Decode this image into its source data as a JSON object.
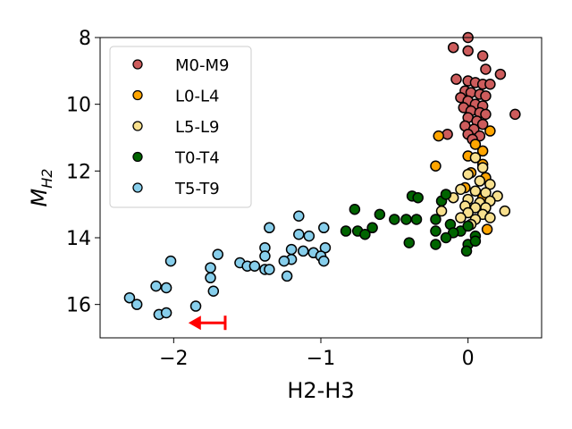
{
  "chart_data": {
    "type": "scatter",
    "title": "",
    "xlabel": "H2-H3",
    "ylabel_base": "M",
    "ylabel_sub": "H2",
    "xlim": [
      -2.5,
      0.5
    ],
    "ylim": [
      17.0,
      8.0
    ],
    "y_inverted": true,
    "xticks": [
      -2,
      -1,
      0
    ],
    "xtick_labels": [
      "−2",
      "−1",
      "0"
    ],
    "yticks": [
      8,
      10,
      12,
      14,
      16
    ],
    "ytick_labels": [
      "8",
      "10",
      "12",
      "14",
      "16"
    ],
    "legend_position": "top-left",
    "series": [
      {
        "name": "M0-M9",
        "color": "#cd5c5c",
        "points": [
          [
            0.0,
            8.0
          ],
          [
            -0.1,
            8.3
          ],
          [
            0.0,
            8.4
          ],
          [
            0.1,
            8.55
          ],
          [
            0.12,
            8.95
          ],
          [
            0.22,
            9.1
          ],
          [
            -0.08,
            9.25
          ],
          [
            0.0,
            9.3
          ],
          [
            0.05,
            9.35
          ],
          [
            0.1,
            9.4
          ],
          [
            0.15,
            9.4
          ],
          [
            -0.02,
            9.6
          ],
          [
            0.02,
            9.65
          ],
          [
            0.08,
            9.7
          ],
          [
            0.12,
            9.75
          ],
          [
            -0.05,
            9.8
          ],
          [
            0.0,
            9.9
          ],
          [
            0.05,
            10.0
          ],
          [
            0.1,
            10.05
          ],
          [
            -0.03,
            10.1
          ],
          [
            0.02,
            10.2
          ],
          [
            0.08,
            10.25
          ],
          [
            0.12,
            10.3
          ],
          [
            0.32,
            10.3
          ],
          [
            0.0,
            10.4
          ],
          [
            0.06,
            10.5
          ],
          [
            0.1,
            10.6
          ],
          [
            -0.02,
            10.65
          ],
          [
            0.04,
            10.75
          ],
          [
            -0.14,
            10.9
          ],
          [
            0.0,
            10.9
          ],
          [
            0.08,
            10.95
          ],
          [
            0.03,
            11.05
          ]
        ]
      },
      {
        "name": "L0-L4",
        "color": "#ffa500",
        "points": [
          [
            -0.2,
            10.95
          ],
          [
            0.15,
            10.8
          ],
          [
            0.05,
            11.2
          ],
          [
            0.1,
            11.4
          ],
          [
            0.0,
            11.55
          ],
          [
            -0.22,
            11.85
          ],
          [
            0.1,
            11.8
          ],
          [
            0.02,
            12.05
          ],
          [
            0.12,
            12.2
          ],
          [
            -0.02,
            12.5
          ],
          [
            0.1,
            12.8
          ],
          [
            0.13,
            13.75
          ]
        ]
      },
      {
        "name": "L5-L9",
        "color": "#f8e08e",
        "points": [
          [
            0.05,
            11.6
          ],
          [
            0.1,
            11.9
          ],
          [
            0.0,
            12.1
          ],
          [
            0.08,
            12.3
          ],
          [
            0.15,
            12.4
          ],
          [
            -0.05,
            12.55
          ],
          [
            0.05,
            12.6
          ],
          [
            0.12,
            12.65
          ],
          [
            0.2,
            12.75
          ],
          [
            -0.1,
            12.8
          ],
          [
            0.0,
            12.85
          ],
          [
            0.08,
            12.95
          ],
          [
            0.15,
            12.9
          ],
          [
            -0.02,
            13.05
          ],
          [
            0.05,
            13.1
          ],
          [
            0.12,
            13.1
          ],
          [
            0.25,
            13.2
          ],
          [
            -0.18,
            13.2
          ],
          [
            0.0,
            13.25
          ],
          [
            0.1,
            13.3
          ],
          [
            -0.05,
            13.4
          ],
          [
            0.05,
            13.45
          ],
          [
            0.15,
            13.4
          ],
          [
            0.02,
            13.6
          ]
        ]
      },
      {
        "name": "T0-T4",
        "color": "#006400",
        "points": [
          [
            -0.77,
            13.15
          ],
          [
            -0.6,
            13.3
          ],
          [
            -0.38,
            12.75
          ],
          [
            -0.34,
            12.8
          ],
          [
            -0.35,
            13.45
          ],
          [
            -0.42,
            13.45
          ],
          [
            -0.18,
            12.9
          ],
          [
            -0.15,
            12.7
          ],
          [
            -0.22,
            13.45
          ],
          [
            -0.5,
            13.45
          ],
          [
            -0.65,
            13.7
          ],
          [
            -0.75,
            13.8
          ],
          [
            -0.7,
            13.9
          ],
          [
            -0.83,
            13.8
          ],
          [
            -0.22,
            13.8
          ],
          [
            -0.12,
            13.6
          ],
          [
            -0.05,
            13.8
          ],
          [
            0.0,
            13.65
          ],
          [
            -0.1,
            13.85
          ],
          [
            -0.15,
            14.0
          ],
          [
            0.05,
            13.95
          ],
          [
            -0.22,
            14.2
          ],
          [
            -0.4,
            14.15
          ],
          [
            0.0,
            14.2
          ],
          [
            0.05,
            14.1
          ],
          [
            -0.01,
            14.4
          ]
        ]
      },
      {
        "name": "T5-T9",
        "color": "#87ceeb",
        "points": [
          [
            -0.98,
            13.7
          ],
          [
            -1.35,
            13.7
          ],
          [
            -1.15,
            13.35
          ],
          [
            -1.15,
            13.9
          ],
          [
            -1.08,
            13.95
          ],
          [
            -1.2,
            14.35
          ],
          [
            -1.12,
            14.4
          ],
          [
            -1.05,
            14.45
          ],
          [
            -0.97,
            14.3
          ],
          [
            -1.2,
            14.65
          ],
          [
            -1.25,
            14.7
          ],
          [
            -1.38,
            14.3
          ],
          [
            -1.38,
            14.55
          ],
          [
            -1.0,
            14.55
          ],
          [
            -0.98,
            14.7
          ],
          [
            -1.55,
            14.75
          ],
          [
            -1.5,
            14.85
          ],
          [
            -1.45,
            14.85
          ],
          [
            -1.38,
            14.95
          ],
          [
            -1.35,
            14.95
          ],
          [
            -1.23,
            15.15
          ],
          [
            -1.7,
            14.5
          ],
          [
            -1.75,
            14.9
          ],
          [
            -1.75,
            15.2
          ],
          [
            -1.73,
            15.6
          ],
          [
            -2.02,
            14.7
          ],
          [
            -2.05,
            15.5
          ],
          [
            -2.12,
            15.45
          ],
          [
            -2.3,
            15.8
          ],
          [
            -2.25,
            16.0
          ],
          [
            -1.85,
            16.05
          ],
          [
            -2.1,
            16.3
          ],
          [
            -2.05,
            16.25
          ]
        ]
      }
    ],
    "annotations": [
      {
        "type": "upper-limit-arrow",
        "color": "#ff0000",
        "x_from": -1.65,
        "x_to": -1.9,
        "y": 16.55
      }
    ]
  }
}
